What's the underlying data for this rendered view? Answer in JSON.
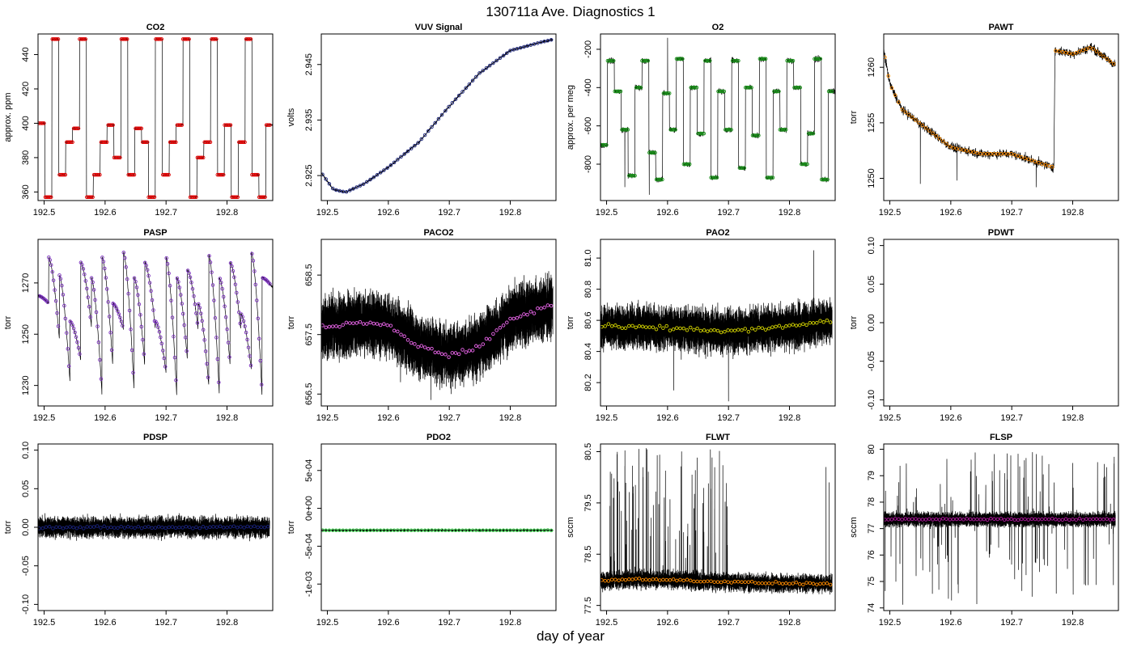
{
  "figure": {
    "title": "130711a   Ave. Diagnostics 1",
    "xlabel": "day of year"
  },
  "chart_data": [
    {
      "type": "line",
      "title": "CO2",
      "ylabel": "approx. ppm",
      "xlim": [
        192.49,
        192.875
      ],
      "ylim": [
        355,
        452
      ],
      "xticks": [
        192.5,
        192.6,
        192.7,
        192.8
      ],
      "xtick_labels": [
        "192.5",
        "192.6",
        "192.7",
        "192.8"
      ],
      "yticks": [
        360,
        380,
        400,
        420,
        440
      ],
      "ytick_labels": [
        "360",
        "380",
        "400",
        "420",
        "440"
      ],
      "raw_series": {
        "color": "#000000",
        "name": "",
        "signal": "steps",
        "x_range": [
          192.49,
          192.875
        ],
        "levels": [
          400,
          357,
          449,
          370,
          389,
          397,
          449,
          357,
          370,
          389,
          399,
          380,
          449,
          370,
          397,
          389,
          357,
          449,
          370,
          389,
          399,
          449,
          357,
          380,
          389,
          449,
          370,
          399,
          357,
          389,
          449,
          370,
          357,
          399
        ],
        "noise": 0.4,
        "spikes": []
      },
      "mean_series": {
        "color": "#dd0000",
        "marker": "circle",
        "levels_sampled_from_raw": true
      }
    },
    {
      "type": "line",
      "title": "VUV Signal",
      "ylabel": "volts",
      "xlim": [
        192.49,
        192.875
      ],
      "ylim": [
        2.9205,
        2.9505
      ],
      "xticks": [
        192.5,
        192.6,
        192.7,
        192.8
      ],
      "xtick_labels": [
        "192.5",
        "192.6",
        "192.7",
        "192.8"
      ],
      "yticks": [
        2.925,
        2.935,
        2.945
      ],
      "ytick_labels": [
        "2.925",
        "2.935",
        "2.945"
      ],
      "raw_series": {
        "color": "#000000",
        "name": "",
        "signal": "curve",
        "x": [
          192.49,
          192.51,
          192.53,
          192.56,
          192.6,
          192.65,
          192.7,
          192.75,
          192.8,
          192.85,
          192.87
        ],
        "y": [
          2.9255,
          2.9225,
          2.922,
          2.9235,
          2.9265,
          2.931,
          2.9375,
          2.9435,
          2.9475,
          2.949,
          2.9495
        ],
        "noise": 0.00025,
        "spikes": []
      },
      "mean_series": {
        "color": "#1a237e",
        "marker": "circle",
        "levels_sampled_from_raw": true
      }
    },
    {
      "type": "line",
      "title": "O2",
      "ylabel": "approx. per meg",
      "xlim": [
        192.49,
        192.875
      ],
      "ylim": [
        -990,
        -120
      ],
      "xticks": [
        192.5,
        192.6,
        192.7,
        192.8
      ],
      "xtick_labels": [
        "192.5",
        "192.6",
        "192.7",
        "192.8"
      ],
      "yticks": [
        -800,
        -600,
        -400,
        -200
      ],
      "ytick_labels": [
        "-800",
        "-600",
        "-400",
        "-200"
      ],
      "raw_series": {
        "color": "#000000",
        "name": "",
        "signal": "steps",
        "x_range": [
          192.49,
          192.875
        ],
        "levels": [
          -700,
          -260,
          -420,
          -620,
          -860,
          -400,
          -260,
          -740,
          -880,
          -430,
          -620,
          -250,
          -800,
          -400,
          -640,
          -260,
          -870,
          -420,
          -620,
          -260,
          -820,
          -400,
          -650,
          -250,
          -870,
          -420,
          -620,
          -260,
          -400,
          -800,
          -640,
          -250,
          -880,
          -420
        ],
        "noise": 22,
        "spikes": [
          {
            "x": 192.57,
            "y": -960
          },
          {
            "x": 192.6,
            "y": -140
          },
          {
            "x": 192.53,
            "y": -920
          }
        ]
      },
      "mean_series": {
        "color": "#1b8f1b",
        "marker": "circle",
        "levels_sampled_from_raw": true
      }
    },
    {
      "type": "line",
      "title": "PAWT",
      "ylabel": "torr",
      "xlim": [
        192.49,
        192.875
      ],
      "ylim": [
        1248,
        1263
      ],
      "xticks": [
        192.5,
        192.6,
        192.7,
        192.8
      ],
      "xtick_labels": [
        "192.5",
        "192.6",
        "192.7",
        "192.8"
      ],
      "yticks": [
        1250,
        1255,
        1260
      ],
      "ytick_labels": [
        "1250",
        "1255",
        "1260"
      ],
      "raw_series": {
        "color": "#000000",
        "name": "",
        "signal": "curve",
        "x": [
          192.49,
          192.5,
          192.52,
          192.56,
          192.6,
          192.65,
          192.7,
          192.75,
          192.769,
          192.771,
          192.8,
          192.83,
          192.87
        ],
        "y": [
          1261.5,
          1258.5,
          1256.2,
          1254.5,
          1252.8,
          1252.2,
          1252.2,
          1251.3,
          1251.0,
          1261.5,
          1261.2,
          1261.8,
          1260.2
        ],
        "noise": 0.6,
        "spikes": [
          {
            "x": 192.55,
            "y": 1249.5
          },
          {
            "x": 192.61,
            "y": 1249.8
          },
          {
            "x": 192.74,
            "y": 1249.2
          }
        ]
      },
      "mean_series": {
        "color": "#ff8c00",
        "marker": "circle",
        "levels_sampled_from_raw": true
      }
    },
    {
      "type": "line",
      "title": "PASP",
      "ylabel": "torr",
      "xlim": [
        192.49,
        192.875
      ],
      "ylim": [
        1222,
        1287
      ],
      "xticks": [
        192.5,
        192.6,
        192.7,
        192.8
      ],
      "xtick_labels": [
        "192.5",
        "192.6",
        "192.7",
        "192.8"
      ],
      "yticks": [
        1230,
        1250,
        1270
      ],
      "ytick_labels": [
        "1230",
        "1250",
        "1270"
      ],
      "raw_series": {
        "color": "#000000",
        "name": "",
        "signal": "sawtooth",
        "x_range": [
          192.49,
          192.875
        ],
        "highs": [
          1265,
          1280,
          1273,
          1255,
          1278,
          1272,
          1280,
          1262,
          1282,
          1272,
          1278,
          1255,
          1280,
          1272,
          1275,
          1262,
          1281,
          1272,
          1278,
          1258,
          1282,
          1272
        ],
        "lows": [
          1262,
          1248,
          1231,
          1240,
          1253,
          1226,
          1238,
          1252,
          1228,
          1238,
          1252,
          1235,
          1226,
          1240,
          1252,
          1230,
          1226,
          1238,
          1252,
          1236,
          1226,
          1268
        ],
        "noise": 0.6,
        "spikes": []
      },
      "mean_series": {
        "color": "#7b2fbe",
        "marker": "circle",
        "levels_sampled_from_raw": true
      }
    },
    {
      "type": "line",
      "title": "PACO2",
      "ylabel": "torr",
      "xlim": [
        192.49,
        192.875
      ],
      "ylim": [
        656.3,
        659.1
      ],
      "xticks": [
        192.5,
        192.6,
        192.7,
        192.8
      ],
      "xtick_labels": [
        "192.5",
        "192.6",
        "192.7",
        "192.8"
      ],
      "yticks": [
        656.5,
        657.5,
        658.5
      ],
      "ytick_labels": [
        "656.5",
        "657.5",
        "658.5"
      ],
      "raw_series": {
        "color": "#000000",
        "name": "",
        "signal": "noise_band",
        "x": [
          192.49,
          192.55,
          192.6,
          192.65,
          192.7,
          192.75,
          192.8,
          192.87
        ],
        "y": [
          657.6,
          657.7,
          657.65,
          657.3,
          657.15,
          657.3,
          657.75,
          658.0
        ],
        "band": 0.5,
        "noise": 0.25,
        "spikes": [
          {
            "x": 192.67,
            "y": 656.4
          },
          {
            "x": 192.62,
            "y": 656.7
          }
        ]
      },
      "mean_series": {
        "color": "#ee66ee",
        "marker": "circle",
        "levels_sampled_from_raw": true
      }
    },
    {
      "type": "line",
      "title": "PAO2",
      "ylabel": "torr",
      "xlim": [
        192.49,
        192.875
      ],
      "ylim": [
        80.05,
        81.12
      ],
      "xticks": [
        192.5,
        192.6,
        192.7,
        192.8
      ],
      "xtick_labels": [
        "192.5",
        "192.6",
        "192.7",
        "192.8"
      ],
      "yticks": [
        80.2,
        80.4,
        80.6,
        80.8,
        81.0
      ],
      "ytick_labels": [
        "80.2",
        "80.4",
        "80.6",
        "80.8",
        "81.0"
      ],
      "raw_series": {
        "color": "#000000",
        "name": "",
        "signal": "noise_band",
        "x": [
          192.49,
          192.6,
          192.7,
          192.8,
          192.87
        ],
        "y": [
          80.56,
          80.55,
          80.53,
          80.56,
          80.6
        ],
        "band": 0.13,
        "noise": 0.08,
        "spikes": [
          {
            "x": 192.84,
            "y": 81.05
          },
          {
            "x": 192.7,
            "y": 80.08
          },
          {
            "x": 192.61,
            "y": 80.15
          }
        ]
      },
      "mean_series": {
        "color": "#d4d400",
        "marker": "circle",
        "levels_sampled_from_raw": true
      }
    },
    {
      "type": "line",
      "title": "PDWT",
      "ylabel": "torr",
      "xlim": [
        192.49,
        192.875
      ],
      "ylim": [
        -0.108,
        0.108
      ],
      "xticks": [
        192.5,
        192.6,
        192.7,
        192.8
      ],
      "xtick_labels": [
        "192.5",
        "192.6",
        "192.7",
        "192.8"
      ],
      "yticks": [
        -0.1,
        -0.05,
        0.0,
        0.05,
        0.1
      ],
      "ytick_labels": [
        "-0.10",
        "-0.05",
        "0.00",
        "0.05",
        "0.10"
      ],
      "raw_series": {
        "color": "#000000",
        "name": "",
        "signal": "empty"
      },
      "mean_series": {
        "color": "#000000",
        "marker": "none",
        "levels_sampled_from_raw": false
      }
    },
    {
      "type": "line",
      "title": "PDSP",
      "ylabel": "torr",
      "xlim": [
        192.49,
        192.875
      ],
      "ylim": [
        -0.108,
        0.108
      ],
      "xticks": [
        192.5,
        192.6,
        192.7,
        192.8
      ],
      "xtick_labels": [
        "192.5",
        "192.6",
        "192.7",
        "192.8"
      ],
      "yticks": [
        -0.1,
        -0.05,
        0.0,
        0.05,
        0.1
      ],
      "ytick_labels": [
        "-0.10",
        "-0.05",
        "0.00",
        "0.05",
        "0.10"
      ],
      "raw_series": {
        "color": "#000000",
        "name": "",
        "signal": "noise_band",
        "x": [
          192.49,
          192.87
        ],
        "y": [
          0.0,
          0.0
        ],
        "band": 0.012,
        "noise": 0.008,
        "spikes": []
      },
      "mean_series": {
        "color": "#1a237e",
        "marker": "circle",
        "levels_sampled_from_raw": true
      }
    },
    {
      "type": "line",
      "title": "PDO2",
      "ylabel": "torr",
      "xlim": [
        192.49,
        192.875
      ],
      "ylim": [
        -0.00135,
        0.00085
      ],
      "xticks": [
        192.5,
        192.6,
        192.7,
        192.8
      ],
      "xtick_labels": [
        "192.5",
        "192.6",
        "192.7",
        "192.8"
      ],
      "yticks": [
        -0.001,
        -0.0005,
        0.0,
        0.0005
      ],
      "ytick_labels": [
        "-1e-03",
        "-5e-04",
        "0e+00",
        "5e-04"
      ],
      "raw_series": {
        "color": "#000000",
        "name": "",
        "signal": "noise_band",
        "x": [
          192.49,
          192.87
        ],
        "y": [
          -0.00029,
          -0.00029
        ],
        "band": 1e-05,
        "noise": 1e-05,
        "spikes": []
      },
      "mean_series": {
        "color": "#2ecc40",
        "marker": "circle",
        "levels_sampled_from_raw": true
      }
    },
    {
      "type": "line",
      "title": "FLWT",
      "ylabel": "sccm",
      "xlim": [
        192.49,
        192.875
      ],
      "ylim": [
        77.4,
        80.65
      ],
      "xticks": [
        192.5,
        192.6,
        192.7,
        192.8
      ],
      "xtick_labels": [
        "192.5",
        "192.6",
        "192.7",
        "192.8"
      ],
      "yticks": [
        77.5,
        78.5,
        79.5,
        80.5
      ],
      "ytick_labels": [
        "77.5",
        "78.5",
        "79.5",
        "80.5"
      ],
      "raw_series": {
        "color": "#000000",
        "name": "",
        "signal": "noise_band",
        "x": [
          192.49,
          192.55,
          192.65,
          192.75,
          192.87
        ],
        "y": [
          77.98,
          78.02,
          77.98,
          77.94,
          77.92
        ],
        "band": 0.15,
        "noise": 0.12,
        "upspikes": {
          "count": 90,
          "max": 80.6,
          "region": [
            192.49,
            192.7
          ]
        },
        "spikes": [
          {
            "x": 192.86,
            "y": 80.2
          },
          {
            "x": 192.865,
            "y": 79.9
          }
        ]
      },
      "mean_series": {
        "color": "#ff8c00",
        "marker": "circle",
        "levels_sampled_from_raw": true
      }
    },
    {
      "type": "line",
      "title": "FLSP",
      "ylabel": "sccm",
      "xlim": [
        192.49,
        192.875
      ],
      "ylim": [
        73.9,
        80.2
      ],
      "xticks": [
        192.5,
        192.6,
        192.7,
        192.8
      ],
      "xtick_labels": [
        "192.5",
        "192.6",
        "192.7",
        "192.8"
      ],
      "yticks": [
        74,
        75,
        76,
        77,
        78,
        79,
        80
      ],
      "ytick_labels": [
        "74",
        "75",
        "76",
        "77",
        "78",
        "79",
        "80"
      ],
      "raw_series": {
        "color": "#000000",
        "name": "",
        "signal": "noise_band",
        "x": [
          192.49,
          192.87
        ],
        "y": [
          77.35,
          77.35
        ],
        "band": 0.25,
        "noise": 0.15,
        "upspikes": {
          "count": 60,
          "max": 79.9,
          "region": [
            192.49,
            192.87
          ]
        },
        "downspikes": {
          "count": 60,
          "min": 74.1,
          "region": [
            192.49,
            192.87
          ]
        },
        "spikes": []
      },
      "mean_series": {
        "color": "#b0189e",
        "marker": "circle",
        "levels_sampled_from_raw": true
      }
    }
  ]
}
